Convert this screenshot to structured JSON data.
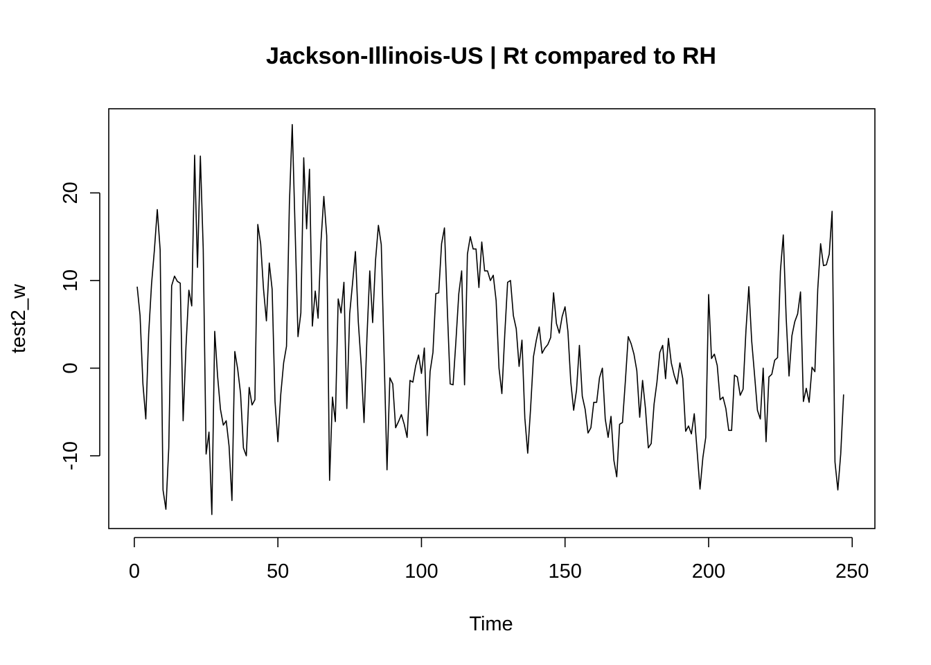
{
  "chart_data": {
    "type": "line",
    "title": "Jackson-Illinois-US | Rt compared to RH",
    "xlabel": "Time",
    "ylabel": "test2_w",
    "xlim": [
      -8.9,
      257.9
    ],
    "ylim": [
      -18.3,
      29.6
    ],
    "x_ticks": [
      0,
      50,
      100,
      150,
      200,
      250
    ],
    "x_tick_labels": [
      "0",
      "50",
      "100",
      "150",
      "200",
      "250"
    ],
    "y_ticks": [
      -10,
      0,
      10,
      20
    ],
    "y_tick_labels": [
      "-10",
      "0",
      "10",
      "20"
    ],
    "grid": false,
    "series": [
      {
        "x_start": 1,
        "values": [
          9.3,
          6.0,
          -1.8,
          -5.8,
          3.9,
          9.6,
          13.5,
          18.1,
          13.5,
          -13.9,
          -16.1,
          -9.1,
          9.4,
          10.5,
          9.9,
          9.7,
          -6.0,
          2.5,
          8.9,
          7.1,
          24.3,
          11.5,
          24.2,
          13.6,
          -9.8,
          -7.3,
          -16.7,
          4.2,
          -0.9,
          -4.7,
          -6.5,
          -6.0,
          -8.9,
          -15.1,
          1.9,
          -0.1,
          -2.9,
          -9.1,
          -10.0,
          -2.2,
          -4.2,
          -3.6,
          16.4,
          14.2,
          9.0,
          5.4,
          12.0,
          9.0,
          -3.8,
          -8.4,
          -3.0,
          0.6,
          2.5,
          18.7,
          27.8,
          15.8,
          3.6,
          6.3,
          24.0,
          15.9,
          22.7,
          4.8,
          8.8,
          5.7,
          14.4,
          19.6,
          15.1,
          -12.8,
          -3.3,
          -6.1,
          7.9,
          6.3,
          9.8,
          -4.6,
          6.2,
          9.7,
          13.3,
          5.3,
          0.4,
          -6.2,
          3.4,
          11.1,
          5.2,
          12.3,
          16.3,
          14.1,
          1.2,
          -11.6,
          -1.1,
          -1.8,
          -6.8,
          -6.1,
          -5.3,
          -6.4,
          -7.9,
          -1.4,
          -1.6,
          0.3,
          1.5,
          -0.6,
          2.3,
          -7.7,
          -0.4,
          1.8,
          8.5,
          8.6,
          14.2,
          16.0,
          6.8,
          -1.8,
          -1.9,
          3.1,
          8.5,
          11.1,
          -1.9,
          13.0,
          15.0,
          13.6,
          13.6,
          9.2,
          14.4,
          11.1,
          11.1,
          10.0,
          10.6,
          7.7,
          0.0,
          -2.9,
          3.8,
          9.8,
          10.0,
          6.0,
          4.5,
          0.2,
          3.2,
          -5.7,
          -9.7,
          -4.6,
          1.3,
          3.2,
          4.7,
          1.7,
          2.3,
          2.7,
          3.5,
          8.6,
          5.1,
          4.0,
          5.9,
          7.0,
          4.2,
          -1.6,
          -4.8,
          -2.5,
          2.6,
          -3.2,
          -4.7,
          -7.4,
          -6.8,
          -3.9,
          -3.9,
          -1.1,
          0.0,
          -5.8,
          -7.9,
          -5.5,
          -10.5,
          -12.4,
          -6.4,
          -6.2,
          -1.5,
          3.6,
          2.8,
          1.6,
          -0.3,
          -5.6,
          -1.4,
          -4.6,
          -9.1,
          -8.6,
          -4.1,
          -1.6,
          1.8,
          2.6,
          -1.2,
          3.4,
          0.6,
          -0.8,
          -1.8,
          0.6,
          -1.2,
          -7.2,
          -6.6,
          -7.5,
          -5.2,
          -9.5,
          -13.8,
          -10.2,
          -7.9,
          8.4,
          1.1,
          1.6,
          0.3,
          -3.6,
          -3.3,
          -4.6,
          -7.1,
          -7.1,
          -0.8,
          -1.0,
          -3.1,
          -2.4,
          4.3,
          9.3,
          3.1,
          -0.8,
          -4.8,
          -5.8,
          0.0,
          -8.4,
          -1.0,
          -0.7,
          0.9,
          1.2,
          11.1,
          15.2,
          5.8,
          -0.9,
          3.7,
          5.3,
          6.2,
          8.7,
          -3.8,
          -2.3,
          -3.9,
          0.1,
          -0.4,
          9.0,
          14.2,
          11.7,
          11.8,
          13.0,
          17.9,
          -10.7,
          -13.9,
          -9.8,
          -3.0
        ]
      }
    ]
  }
}
